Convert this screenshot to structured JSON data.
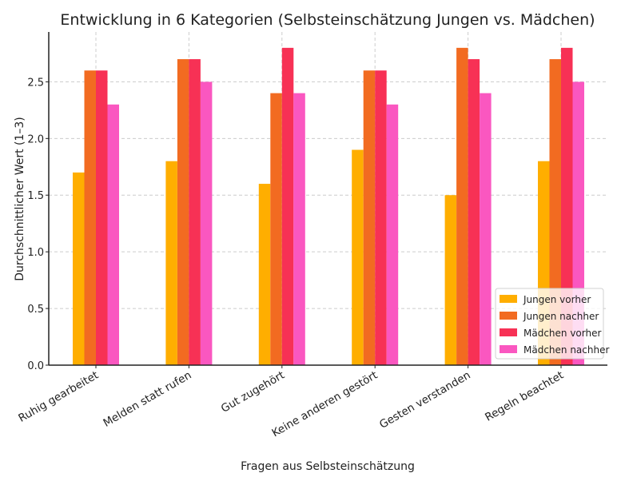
{
  "chart_data": {
    "type": "bar",
    "title": "Entwicklung in 6 Kategorien (Selbsteinschätzung Jungen vs. Mädchen)",
    "xlabel": "Fragen aus Selbsteinschätzung",
    "ylabel": "Durchschnittlicher Wert (1–3)",
    "ylim": [
      0,
      2.94
    ],
    "yticks": [
      0.0,
      0.5,
      1.0,
      1.5,
      2.0,
      2.5
    ],
    "ytick_labels": [
      "0.0",
      "0.5",
      "1.0",
      "1.5",
      "2.0",
      "2.5"
    ],
    "grid": true,
    "legend_position": "lower-right",
    "categories": [
      "Ruhig gearbeitet",
      "Melden statt rufen",
      "Gut zugehört",
      "Keine anderen gestört",
      "Gesten verstanden",
      "Regeln beachtet"
    ],
    "series": [
      {
        "name": "Jungen vorher",
        "color": "#FFAE00",
        "values": [
          1.7,
          1.8,
          1.6,
          1.9,
          1.5,
          1.8
        ]
      },
      {
        "name": "Jungen nachher",
        "color": "#F26B21",
        "values": [
          2.6,
          2.7,
          2.4,
          2.6,
          2.8,
          2.7
        ]
      },
      {
        "name": "Mädchen vorher",
        "color": "#F73155",
        "values": [
          2.6,
          2.7,
          2.8,
          2.6,
          2.7,
          2.8
        ]
      },
      {
        "name": "Mädchen nachher",
        "color": "#FA57C0",
        "values": [
          2.3,
          2.5,
          2.4,
          2.3,
          2.4,
          2.5
        ]
      }
    ]
  }
}
